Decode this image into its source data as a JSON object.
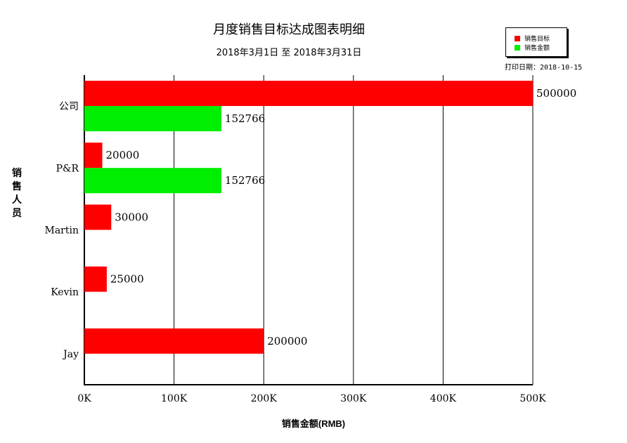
{
  "chart_data": {
    "type": "bar",
    "orientation": "horizontal",
    "title": "月度销售目标达成图表明细",
    "subtitle": "2018年3月1日 至 2018年3月31日",
    "print_date": "打印日期：2018-10-15",
    "xlabel": "销售金额(RMB)",
    "ylabel": "销售人员",
    "categories": [
      "公司",
      "P&R",
      "Martin",
      "Kevin",
      "Jay"
    ],
    "xlim": [
      0,
      500000
    ],
    "x_ticks": [
      {
        "value": 0,
        "label": "0K"
      },
      {
        "value": 100000,
        "label": "100K"
      },
      {
        "value": 200000,
        "label": "200K"
      },
      {
        "value": 300000,
        "label": "300K"
      },
      {
        "value": 400000,
        "label": "400K"
      },
      {
        "value": 500000,
        "label": "500K"
      }
    ],
    "grid": true,
    "legend_position": "top-right",
    "series": [
      {
        "name": "销售目标",
        "color": "#ff0000",
        "values": [
          500000,
          20000,
          30000,
          25000,
          200000
        ]
      },
      {
        "name": "销售金额",
        "color": "#00ee00",
        "values": [
          152766,
          152766,
          null,
          null,
          null
        ]
      }
    ]
  }
}
